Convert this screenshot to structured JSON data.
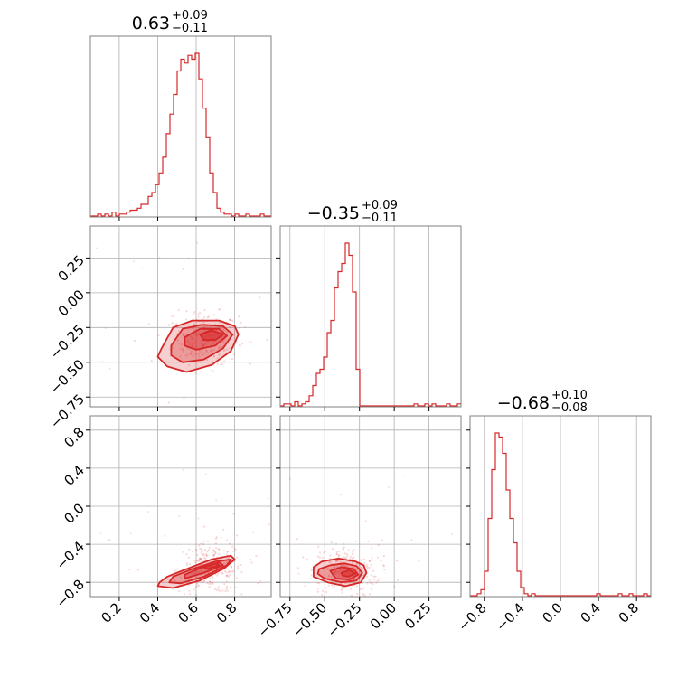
{
  "chart_data": {
    "type": "corner",
    "color": "#d62728",
    "grid": true,
    "legend": "none",
    "parameters": [
      {
        "index": 0,
        "median": 0.63,
        "plus": 0.09,
        "minus": 0.11,
        "title_main": "0.63",
        "title_plus": "+0.09",
        "title_minus": "−0.11",
        "range": [
          0.05,
          0.99
        ],
        "ticks": [
          0.2,
          0.4,
          0.6,
          0.8
        ],
        "tick_labels": [
          "0.2",
          "0.4",
          "0.6",
          "0.8"
        ]
      },
      {
        "index": 1,
        "median": -0.35,
        "plus": 0.09,
        "minus": 0.11,
        "title_main": "−0.35",
        "title_plus": "+0.09",
        "title_minus": "−0.11",
        "range": [
          -0.82,
          0.48
        ],
        "ticks": [
          -0.75,
          -0.5,
          -0.25,
          0.0,
          0.25
        ],
        "tick_labels": [
          "−0.75",
          "−0.50",
          "−0.25",
          "0.00",
          "0.25"
        ]
      },
      {
        "index": 2,
        "median": -0.68,
        "plus": 0.1,
        "minus": 0.08,
        "title_main": "−0.68",
        "title_plus": "+0.10",
        "title_minus": "−0.08",
        "range": [
          -0.95,
          0.95
        ],
        "ticks": [
          -0.8,
          -0.4,
          0.0,
          0.4,
          0.8
        ],
        "tick_labels": [
          "−0.8",
          "−0.4",
          "0.0",
          "0.4",
          "0.8"
        ]
      }
    ],
    "histograms": [
      {
        "param": 0,
        "bin_edges": [
          0.05,
          0.99
        ],
        "counts": [
          0,
          0,
          1,
          0,
          1,
          0,
          2,
          0,
          1,
          1,
          2,
          3,
          3,
          4,
          6,
          6,
          10,
          12,
          16,
          22,
          30,
          42,
          52,
          62,
          74,
          80,
          78,
          82,
          80,
          83,
          70,
          55,
          40,
          22,
          12,
          4,
          2,
          1,
          1,
          0,
          1,
          0,
          0,
          1,
          0,
          0,
          0,
          1,
          0,
          0
        ]
      },
      {
        "param": 1,
        "bin_edges": [
          -0.82,
          0.48
        ],
        "counts": [
          0,
          1,
          1,
          0,
          2,
          0,
          1,
          2,
          5,
          10,
          16,
          18,
          24,
          36,
          42,
          58,
          66,
          70,
          80,
          74,
          56,
          18,
          0,
          0,
          0,
          0,
          0,
          0,
          0,
          0,
          0,
          0,
          0,
          0,
          0,
          0,
          0,
          1,
          0,
          0,
          1,
          0,
          1,
          0,
          0,
          0,
          1,
          0,
          0,
          1
        ]
      },
      {
        "param": 2,
        "bin_edges": [
          -0.95,
          0.95
        ],
        "counts": [
          0,
          0,
          1,
          3,
          12,
          38,
          62,
          80,
          78,
          70,
          52,
          38,
          26,
          12,
          4,
          1,
          0,
          1,
          0,
          0,
          0,
          0,
          0,
          0,
          0,
          0,
          0,
          0,
          0,
          0,
          0,
          0,
          0,
          0,
          0,
          1,
          0,
          0,
          0,
          0,
          0,
          1,
          0,
          0,
          1,
          0,
          0,
          0,
          1,
          0
        ]
      }
    ],
    "joint_2d": [
      {
        "x_param": 0,
        "y_param": 1,
        "center": [
          0.65,
          -0.33
        ],
        "contours": [
          {
            "level": 1,
            "points": [
              [
                0.42,
                -0.4
              ],
              [
                0.48,
                -0.25
              ],
              [
                0.58,
                -0.2
              ],
              [
                0.72,
                -0.2
              ],
              [
                0.8,
                -0.24
              ],
              [
                0.82,
                -0.3
              ],
              [
                0.78,
                -0.42
              ],
              [
                0.68,
                -0.52
              ],
              [
                0.55,
                -0.57
              ],
              [
                0.45,
                -0.53
              ],
              [
                0.4,
                -0.46
              ]
            ]
          },
          {
            "level": 2,
            "points": [
              [
                0.47,
                -0.38
              ],
              [
                0.53,
                -0.26
              ],
              [
                0.63,
                -0.23
              ],
              [
                0.74,
                -0.24
              ],
              [
                0.79,
                -0.3
              ],
              [
                0.74,
                -0.4
              ],
              [
                0.64,
                -0.48
              ],
              [
                0.53,
                -0.5
              ],
              [
                0.47,
                -0.45
              ]
            ]
          },
          {
            "level": 3,
            "points": [
              [
                0.54,
                -0.32
              ],
              [
                0.62,
                -0.26
              ],
              [
                0.72,
                -0.26
              ],
              [
                0.76,
                -0.31
              ],
              [
                0.7,
                -0.38
              ],
              [
                0.6,
                -0.41
              ],
              [
                0.54,
                -0.38
              ]
            ]
          },
          {
            "level": 4,
            "points": [
              [
                0.62,
                -0.3
              ],
              [
                0.68,
                -0.27
              ],
              [
                0.74,
                -0.3
              ],
              [
                0.7,
                -0.34
              ],
              [
                0.64,
                -0.34
              ]
            ]
          }
        ]
      },
      {
        "x_param": 0,
        "y_param": 2,
        "center": [
          0.68,
          -0.65
        ],
        "contours": [
          {
            "level": 1,
            "points": [
              [
                0.41,
                -0.8
              ],
              [
                0.4,
                -0.84
              ],
              [
                0.48,
                -0.86
              ],
              [
                0.62,
                -0.78
              ],
              [
                0.74,
                -0.66
              ],
              [
                0.8,
                -0.56
              ],
              [
                0.78,
                -0.52
              ],
              [
                0.68,
                -0.56
              ],
              [
                0.55,
                -0.66
              ],
              [
                0.45,
                -0.74
              ]
            ]
          },
          {
            "level": 2,
            "points": [
              [
                0.46,
                -0.8
              ],
              [
                0.52,
                -0.81
              ],
              [
                0.64,
                -0.74
              ],
              [
                0.76,
                -0.62
              ],
              [
                0.78,
                -0.56
              ],
              [
                0.7,
                -0.58
              ],
              [
                0.58,
                -0.66
              ],
              [
                0.48,
                -0.74
              ]
            ]
          },
          {
            "level": 3,
            "points": [
              [
                0.54,
                -0.76
              ],
              [
                0.64,
                -0.7
              ],
              [
                0.74,
                -0.62
              ],
              [
                0.72,
                -0.59
              ],
              [
                0.62,
                -0.65
              ],
              [
                0.54,
                -0.72
              ]
            ]
          },
          {
            "level": 4,
            "points": [
              [
                0.66,
                -0.66
              ],
              [
                0.72,
                -0.62
              ],
              [
                0.7,
                -0.6
              ],
              [
                0.64,
                -0.64
              ]
            ]
          }
        ]
      },
      {
        "x_param": 1,
        "y_param": 2,
        "center": [
          -0.35,
          -0.68
        ],
        "contours": [
          {
            "level": 1,
            "points": [
              [
                -0.58,
                -0.64
              ],
              [
                -0.52,
                -0.58
              ],
              [
                -0.4,
                -0.55
              ],
              [
                -0.28,
                -0.58
              ],
              [
                -0.22,
                -0.62
              ],
              [
                -0.2,
                -0.7
              ],
              [
                -0.24,
                -0.8
              ],
              [
                -0.35,
                -0.84
              ],
              [
                -0.48,
                -0.8
              ],
              [
                -0.58,
                -0.74
              ]
            ]
          },
          {
            "level": 2,
            "points": [
              [
                -0.54,
                -0.66
              ],
              [
                -0.46,
                -0.62
              ],
              [
                -0.36,
                -0.6
              ],
              [
                -0.27,
                -0.63
              ],
              [
                -0.23,
                -0.7
              ],
              [
                -0.27,
                -0.78
              ],
              [
                -0.38,
                -0.8
              ],
              [
                -0.5,
                -0.76
              ],
              [
                -0.55,
                -0.71
              ]
            ]
          },
          {
            "level": 3,
            "points": [
              [
                -0.46,
                -0.68
              ],
              [
                -0.38,
                -0.64
              ],
              [
                -0.29,
                -0.66
              ],
              [
                -0.26,
                -0.72
              ],
              [
                -0.32,
                -0.77
              ],
              [
                -0.42,
                -0.76
              ]
            ]
          },
          {
            "level": 4,
            "points": [
              [
                -0.38,
                -0.7
              ],
              [
                -0.32,
                -0.67
              ],
              [
                -0.28,
                -0.71
              ],
              [
                -0.33,
                -0.74
              ],
              [
                -0.37,
                -0.73
              ]
            ]
          }
        ]
      }
    ]
  }
}
